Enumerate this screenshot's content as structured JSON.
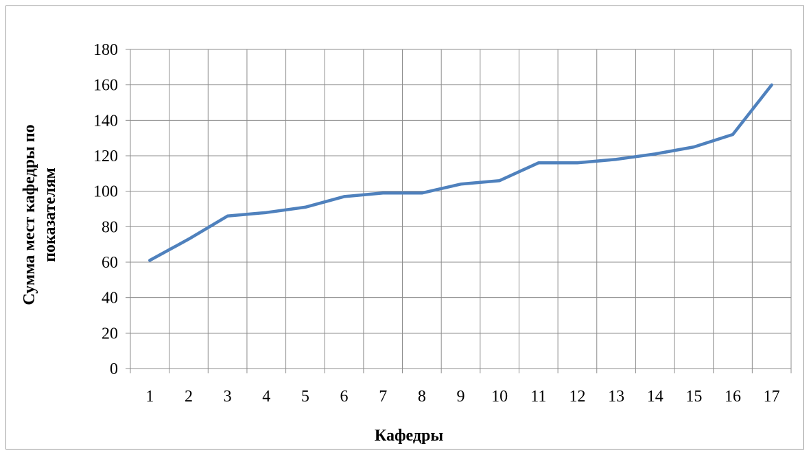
{
  "chart_data": {
    "type": "line",
    "title": "",
    "xlabel": "Кафедры",
    "ylabel_lines": [
      "Сумма мест кафедры по",
      "показателям"
    ],
    "categories": [
      "1",
      "2",
      "3",
      "4",
      "5",
      "6",
      "7",
      "8",
      "9",
      "10",
      "11",
      "12",
      "13",
      "14",
      "15",
      "16",
      "17"
    ],
    "series": [
      {
        "values": [
          61,
          73,
          86,
          88,
          91,
          97,
          99,
          99,
          104,
          106,
          116,
          116,
          118,
          121,
          125,
          132,
          160
        ]
      }
    ],
    "ylim": [
      0,
      180
    ],
    "ytick_step": 20,
    "yticks": [
      "0",
      "20",
      "40",
      "60",
      "80",
      "100",
      "120",
      "140",
      "160",
      "180"
    ],
    "grid": true,
    "legend": "none",
    "line_color": "#4f81bd",
    "grid_color": "#8c8c8c",
    "axis_color": "#8c8c8c"
  }
}
